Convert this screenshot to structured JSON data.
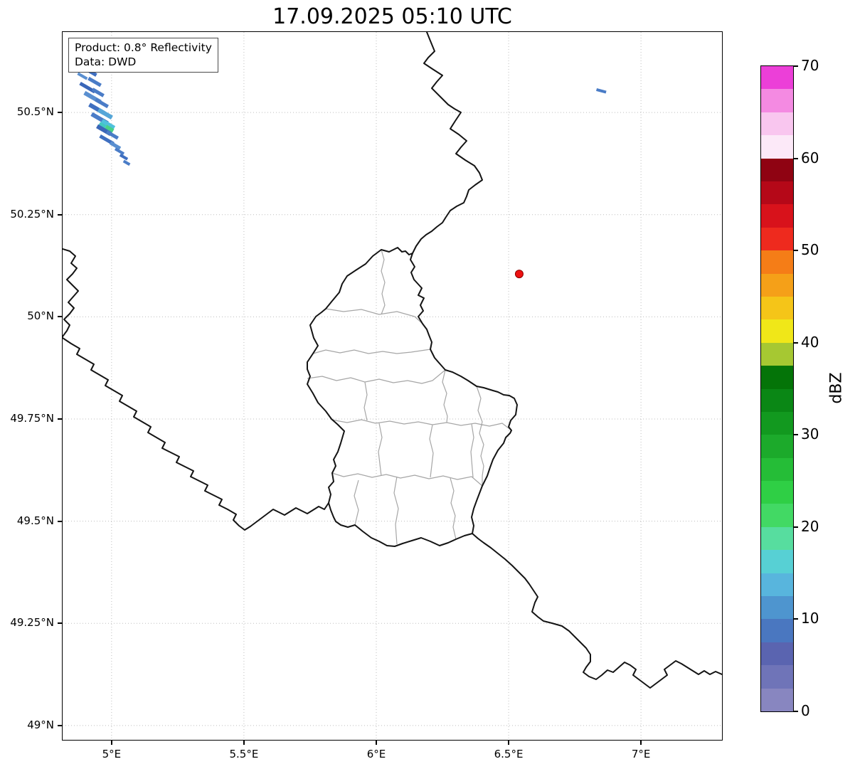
{
  "title": "17.09.2025 05:10 UTC",
  "info_box": {
    "line1": "Product: 0.8° Reflectivity",
    "line2": "Data: DWD"
  },
  "chart_data": {
    "type": "map",
    "projection": "PlateCarree",
    "extent": {
      "lon_min": 4.815,
      "lon_max": 7.306,
      "lat_min": 48.965,
      "lat_max": 50.697
    },
    "grid": "dotted",
    "x_ticks": [
      {
        "value": 5.0,
        "label": "5°E"
      },
      {
        "value": 5.5,
        "label": "5.5°E"
      },
      {
        "value": 6.0,
        "label": "6°E"
      },
      {
        "value": 6.5,
        "label": "6.5°E"
      },
      {
        "value": 7.0,
        "label": "7°E"
      }
    ],
    "y_ticks": [
      {
        "value": 50.5,
        "label": "50.5°N"
      },
      {
        "value": 50.25,
        "label": "50.25°N"
      },
      {
        "value": 50.0,
        "label": "50°N"
      },
      {
        "value": 49.75,
        "label": "49.75°N"
      },
      {
        "value": 49.5,
        "label": "49.5°N"
      },
      {
        "value": 49.25,
        "label": "49.25°N"
      },
      {
        "value": 49.0,
        "label": "49°N"
      }
    ],
    "radar_site": {
      "lon": 6.54,
      "lat": 50.105,
      "color": "#ee1111",
      "edge": "#8b0000"
    },
    "echoes": [
      {
        "lon": 4.896,
        "lat": 50.613,
        "len": 16,
        "wid": 4,
        "rot": 30,
        "color": "#4a7cc7"
      },
      {
        "lon": 4.917,
        "lat": 50.601,
        "len": 22,
        "wid": 5,
        "rot": 30,
        "color": "#3f6fc0"
      },
      {
        "lon": 4.89,
        "lat": 50.589,
        "len": 15,
        "wid": 4,
        "rot": 30,
        "color": "#5a8fd0"
      },
      {
        "lon": 4.936,
        "lat": 50.575,
        "len": 20,
        "wid": 5,
        "rot": 30,
        "color": "#4a7cc7"
      },
      {
        "lon": 4.909,
        "lat": 50.561,
        "len": 24,
        "wid": 5,
        "rot": 30,
        "color": "#3a66b8"
      },
      {
        "lon": 4.949,
        "lat": 50.549,
        "len": 18,
        "wid": 5,
        "rot": 30,
        "color": "#4a7cc7"
      },
      {
        "lon": 4.928,
        "lat": 50.537,
        "len": 26,
        "wid": 6,
        "rot": 30,
        "color": "#5a8fd0"
      },
      {
        "lon": 4.963,
        "lat": 50.523,
        "len": 20,
        "wid": 5,
        "rot": 30,
        "color": "#4a7cc7"
      },
      {
        "lon": 4.944,
        "lat": 50.509,
        "len": 24,
        "wid": 6,
        "rot": 30,
        "color": "#3f6fc0"
      },
      {
        "lon": 4.976,
        "lat": 50.497,
        "len": 22,
        "wid": 6,
        "rot": 30,
        "color": "#55a6d8"
      },
      {
        "lon": 4.955,
        "lat": 50.485,
        "len": 26,
        "wid": 6,
        "rot": 30,
        "color": "#4a7cc7"
      },
      {
        "lon": 4.987,
        "lat": 50.471,
        "len": 20,
        "wid": 6,
        "rot": 30,
        "color": "#4fc0dc"
      },
      {
        "lon": 4.992,
        "lat": 50.46,
        "len": 12,
        "wid": 6,
        "rot": 30,
        "color": "#49d187"
      },
      {
        "lon": 4.966,
        "lat": 50.469,
        "len": 10,
        "wid": 5,
        "rot": 30,
        "color": "#42c8c0"
      },
      {
        "lon": 4.971,
        "lat": 50.457,
        "len": 22,
        "wid": 6,
        "rot": 30,
        "color": "#3a66b8"
      },
      {
        "lon": 5.003,
        "lat": 50.445,
        "len": 18,
        "wid": 5,
        "rot": 30,
        "color": "#4a7cc7"
      },
      {
        "lon": 4.982,
        "lat": 50.433,
        "len": 22,
        "wid": 5,
        "rot": 30,
        "color": "#3f6fc0"
      },
      {
        "lon": 5.014,
        "lat": 50.419,
        "len": 16,
        "wid": 5,
        "rot": 30,
        "color": "#5a8fd0"
      },
      {
        "lon": 5.03,
        "lat": 50.405,
        "len": 14,
        "wid": 4,
        "rot": 30,
        "color": "#4a7cc7"
      },
      {
        "lon": 5.046,
        "lat": 50.391,
        "len": 12,
        "wid": 4,
        "rot": 30,
        "color": "#3f6fc0"
      },
      {
        "lon": 5.057,
        "lat": 50.377,
        "len": 10,
        "wid": 4,
        "rot": 30,
        "color": "#4a7cc7"
      },
      {
        "lon": 6.85,
        "lat": 50.553,
        "len": 14,
        "wid": 4,
        "rot": 15,
        "color": "#4a7cc7"
      }
    ],
    "colorbar": {
      "label": "dBZ",
      "min": 0,
      "max": 70,
      "step_dbz": 2.5,
      "ticks": [
        {
          "value": 0,
          "label": "0"
        },
        {
          "value": 10,
          "label": "10"
        },
        {
          "value": 20,
          "label": "20"
        },
        {
          "value": 30,
          "label": "30"
        },
        {
          "value": 40,
          "label": "40"
        },
        {
          "value": 50,
          "label": "50"
        },
        {
          "value": 60,
          "label": "60"
        },
        {
          "value": 70,
          "label": "70"
        }
      ],
      "colors_bottom_to_top": [
        "#8886c0",
        "#6f74b8",
        "#5a64b0",
        "#4a77c0",
        "#4e95cf",
        "#58b5dd",
        "#57d0d4",
        "#57dd9f",
        "#42d964",
        "#2fcf45",
        "#25bd37",
        "#1caa2b",
        "#12991f",
        "#0a8715",
        "#047408",
        "#a6c832",
        "#f0e718",
        "#f5c518",
        "#f5a018",
        "#f57d17",
        "#ee2a1e",
        "#d8121b",
        "#b50818",
        "#8f0312",
        "#fce9f8",
        "#f9c6ef",
        "#f48ae2",
        "#ec3fd8"
      ]
    }
  }
}
